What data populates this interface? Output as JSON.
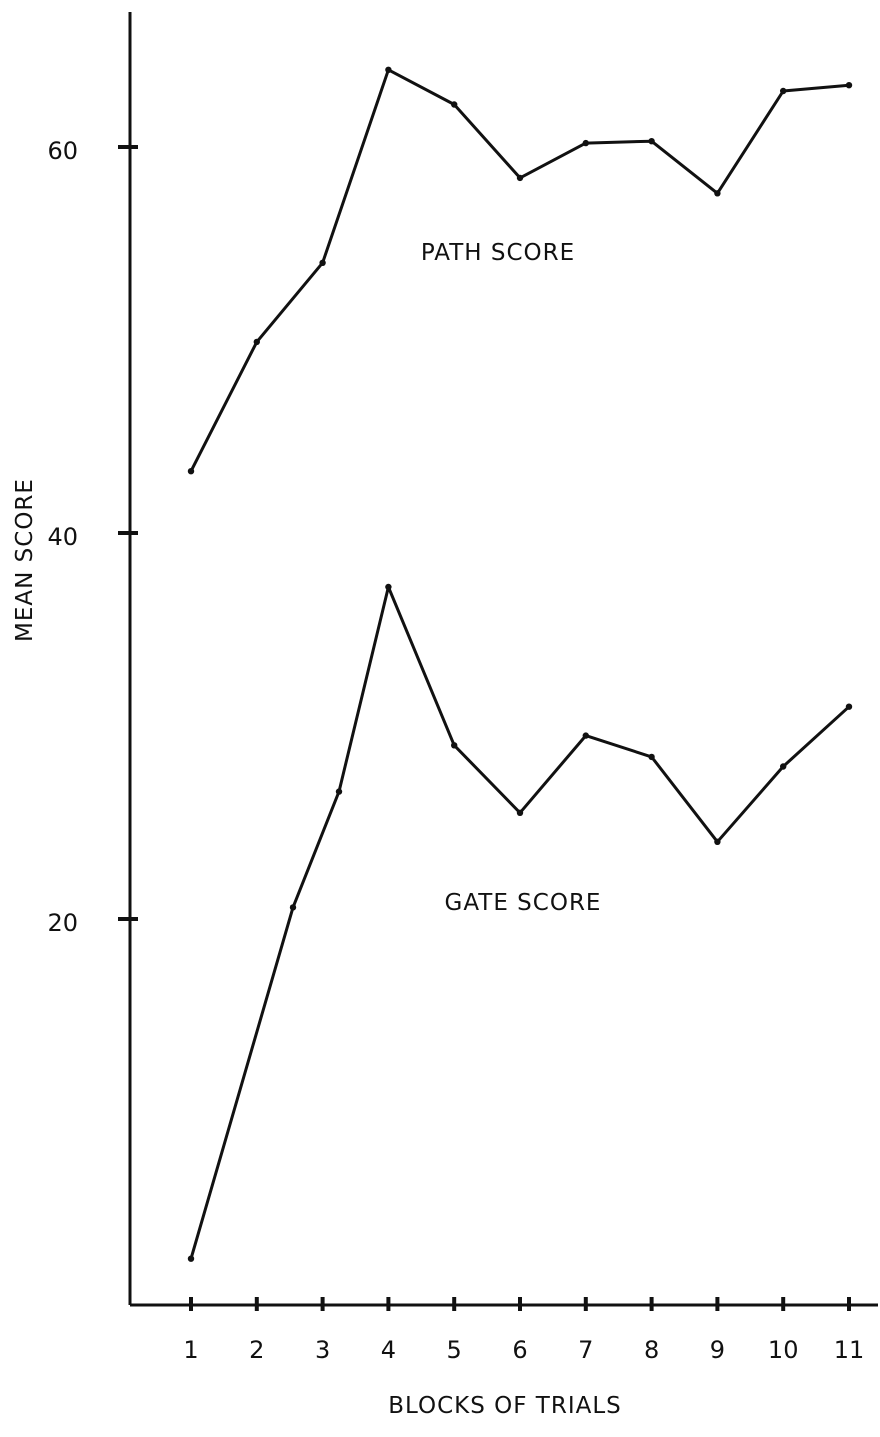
{
  "chart_data": {
    "type": "line",
    "title": "",
    "xlabel": "BLOCKS OF TRIALS",
    "ylabel": "MEAN SCORE",
    "x": [
      1,
      2,
      3,
      4,
      5,
      6,
      7,
      8,
      9,
      10,
      11
    ],
    "x_tick_labels": [
      "1",
      "2",
      "3",
      "4",
      "5",
      "6",
      "7",
      "8",
      "9",
      "10",
      "11"
    ],
    "y_ticks": [
      20,
      40,
      60
    ],
    "y_tick_labels": [
      "20",
      "40",
      "60"
    ],
    "ylim": [
      0,
      74
    ],
    "grid": false,
    "legend": "none",
    "series": [
      {
        "name": "PATH SCORE",
        "x": [
          1,
          2,
          3,
          4,
          5,
          6,
          7,
          8,
          9,
          10,
          11
        ],
        "values": [
          43.2,
          49.9,
          54.0,
          64.0,
          62.2,
          58.4,
          60.2,
          60.3,
          57.6,
          62.9,
          63.2
        ]
      },
      {
        "name": "GATE SCORE",
        "x": [
          1,
          2.55,
          3.25,
          4,
          5,
          6,
          7,
          8,
          9,
          10,
          11
        ],
        "values": [
          2.4,
          20.6,
          26.6,
          37.2,
          29.0,
          25.5,
          29.5,
          28.4,
          24.0,
          27.9,
          31.0
        ]
      }
    ],
    "colors": {
      "ink": "#111111",
      "background": "#ffffff"
    }
  }
}
